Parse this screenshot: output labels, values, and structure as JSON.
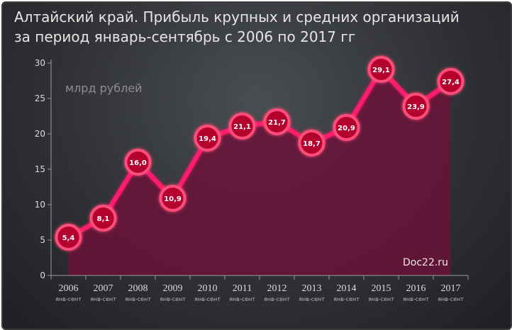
{
  "title_line1": "Алтайский край. Прибыль крупных и средних организаций",
  "title_line2": "за период январь-сентябрь с 2006 по 2017 гг",
  "watermark": "Doc22.ru",
  "colors": {
    "line": "#ff1f6b",
    "area": "#6b1238",
    "marker_fill": "#b3002f",
    "marker_ring": "#ff4d7a",
    "axis": "#9a9a9a",
    "text": "#dcdcdc"
  },
  "chart_data": {
    "type": "area",
    "unit_label": "млрд рублей",
    "categories": [
      "2006",
      "2007",
      "2008",
      "2009",
      "2010",
      "2011",
      "2012",
      "2013",
      "2014",
      "2015",
      "2016",
      "2017"
    ],
    "category_sublabel": "янв-сент",
    "values": [
      5.4,
      8.1,
      16.0,
      10.9,
      19.4,
      21.1,
      21.7,
      18.7,
      20.9,
      29.1,
      23.9,
      27.4
    ],
    "value_labels": [
      "5,4",
      "8,1",
      "16,0",
      "10,9",
      "19,4",
      "21,1",
      "21,7",
      "18,7",
      "20,9",
      "29,1",
      "23,9",
      "27,4"
    ],
    "ylim": [
      0,
      30
    ],
    "yticks": [
      0,
      5,
      10,
      15,
      20,
      25,
      30
    ],
    "grid": false,
    "legend": "none"
  }
}
